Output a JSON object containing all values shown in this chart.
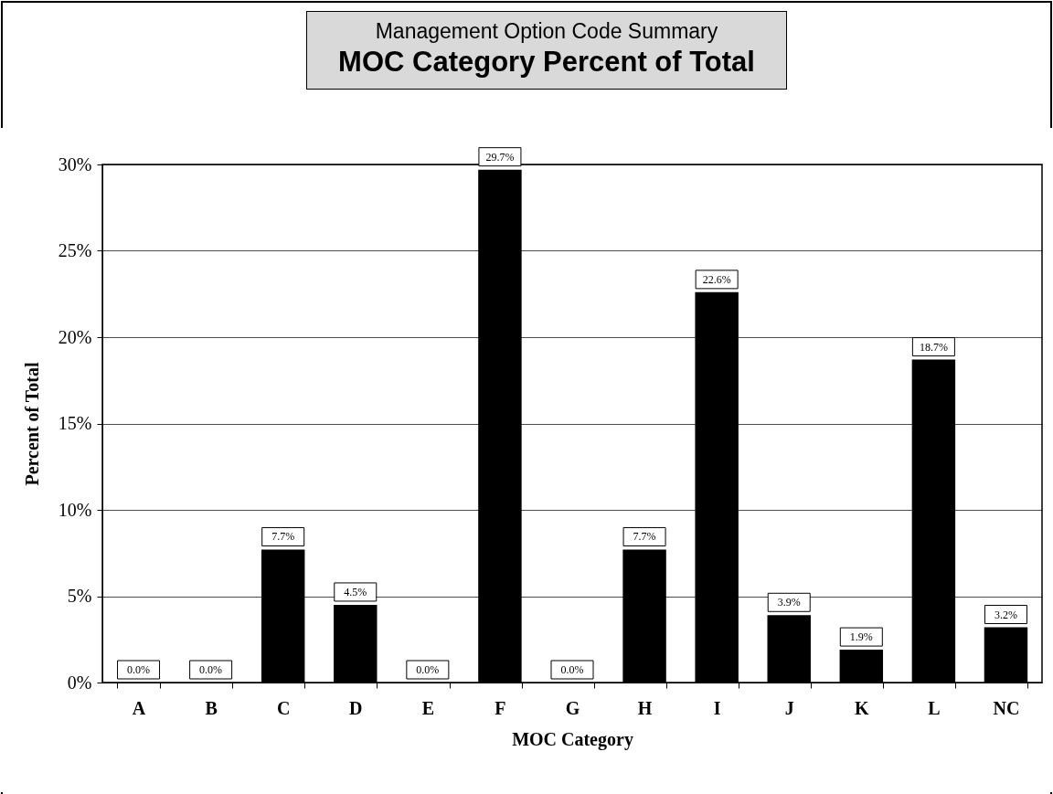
{
  "chart_data": {
    "type": "bar",
    "subtitle": "Management Option Code Summary",
    "title": "MOC Category Percent of Total",
    "xlabel": "MOC Category",
    "ylabel": "Percent of Total",
    "categories": [
      "A",
      "B",
      "C",
      "D",
      "E",
      "F",
      "G",
      "H",
      "I",
      "J",
      "K",
      "L",
      "NC"
    ],
    "values": [
      0,
      0,
      7.7,
      4.5,
      0,
      29.7,
      0,
      7.7,
      22.6,
      3.9,
      1.9,
      18.7,
      3.2
    ],
    "value_labels": [
      "0.0%",
      "0.0%",
      "7.7%",
      "4.5%",
      "0.0%",
      "29.7%",
      "0.0%",
      "7.7%",
      "22.6%",
      "3.9%",
      "1.9%",
      "18.7%",
      "3.2%"
    ],
    "color": "#000000",
    "ylim": [
      0,
      30
    ],
    "yticks": [
      {
        "value": 0,
        "label": "0%"
      },
      {
        "value": 5,
        "label": "5%"
      },
      {
        "value": 10,
        "label": "10%"
      },
      {
        "value": 15,
        "label": "15%"
      },
      {
        "value": 20,
        "label": "20%"
      },
      {
        "value": 25,
        "label": "25%"
      },
      {
        "value": 30,
        "label": "30%"
      }
    ],
    "grid": "y"
  }
}
